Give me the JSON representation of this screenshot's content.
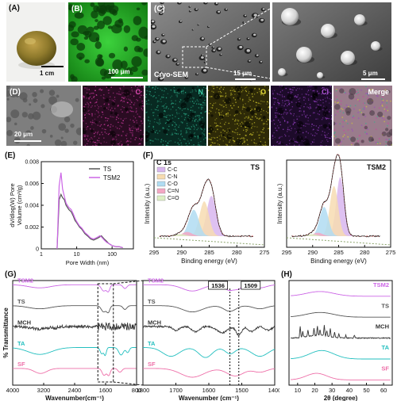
{
  "panels": {
    "A": {
      "label": "(A)",
      "scale": "1 cm"
    },
    "B": {
      "label": "(B)",
      "scale": "100 μm"
    },
    "C": {
      "label": "(C)",
      "caption": "Cryo-SEM",
      "scale_left": "15 μm",
      "scale_right": "5 μm"
    },
    "D": {
      "label": "(D)",
      "scale": "20 μm",
      "channels": [
        {
          "name": "C",
          "color": "#d23ca4"
        },
        {
          "name": "N",
          "color": "#2fb48e"
        },
        {
          "name": "O",
          "color": "#d8cf2e"
        },
        {
          "name": "Cl",
          "color": "#9a42c8"
        },
        {
          "name": "Merge",
          "color": "#ffffff"
        }
      ]
    },
    "E": {
      "label": "(E)"
    },
    "F": {
      "label": "(F)"
    },
    "G": {
      "label": "(G)"
    },
    "H": {
      "label": "(H)"
    }
  },
  "colors": {
    "TS": "#555555",
    "TSM2": "#cc66e6",
    "MCH": "#333333",
    "TA": "#22bfbf",
    "SF": "#ee6fa8"
  },
  "chart_data": [
    {
      "id": "E",
      "type": "line",
      "ylabel": "dV/dlog(W) Pore Volume (cm³/g)",
      "ylabel_lines": [
        "dV/dlog(W) Pore",
        "Volume (cm³/g)"
      ],
      "xlabel": "Pore Width (nm)",
      "xscale": "log",
      "xlim": [
        1,
        400
      ],
      "ylim": [
        0,
        0.008
      ],
      "xticks": [
        1,
        10,
        100
      ],
      "xtick_labels": [
        "1",
        "10",
        "100"
      ],
      "yticks": [
        0,
        0.002,
        0.004,
        0.006,
        0.008
      ],
      "ytick_labels": [
        "0",
        "0.002",
        "0.004",
        "0.006",
        "0.008"
      ],
      "legend": "top-right",
      "series": [
        {
          "name": "TS",
          "x": [
            2.8,
            3.2,
            3.6,
            4.0,
            4.5,
            5.0,
            6,
            7,
            8,
            9,
            10,
            12,
            14,
            17,
            20,
            25,
            30,
            35,
            40,
            45,
            50,
            60,
            70,
            80,
            100,
            130,
            160,
            200
          ],
          "y": [
            0,
            0.0045,
            0.005,
            0.0047,
            0.0045,
            0.004,
            0.0036,
            0.0034,
            0.003,
            0.0026,
            0.0024,
            0.002,
            0.0018,
            0.0014,
            0.0012,
            0.0009,
            0.0008,
            0.0009,
            0.001,
            0.0011,
            0.0012,
            0.0009,
            0.0007,
            0.0005,
            0.0003,
            0.0002,
            0.0002,
            0.0001
          ]
        },
        {
          "name": "TSM2",
          "x": [
            2.8,
            3.2,
            3.6,
            4.0,
            4.5,
            5.0,
            6,
            7,
            8,
            9,
            10,
            12,
            14,
            17,
            20,
            25,
            30,
            35,
            40,
            45,
            50,
            60,
            70,
            80,
            100,
            130,
            160,
            200
          ],
          "y": [
            0,
            0.0058,
            0.007,
            0.0055,
            0.0048,
            0.0042,
            0.0038,
            0.0036,
            0.0032,
            0.0028,
            0.0025,
            0.0021,
            0.0019,
            0.0015,
            0.0013,
            0.001,
            0.0009,
            0.001,
            0.0011,
            0.0012,
            0.0011,
            0.0008,
            0.0006,
            0.0005,
            0.0003,
            0.0002,
            0.0002,
            0.0001
          ]
        }
      ]
    },
    {
      "id": "F-TS",
      "type": "line",
      "title": "TS",
      "subtitle": "C 1s",
      "xlabel": "Binding energy (eV)",
      "ylabel": "Intensity (a.u.)",
      "xlim": [
        295,
        275
      ],
      "xticks": [
        295,
        290,
        285,
        280,
        275
      ],
      "legend": "top-left",
      "components": [
        {
          "name": "C-C",
          "color": "#d8b6ee",
          "center": 284.6,
          "height": 0.58,
          "sigma": 0.85
        },
        {
          "name": "C-N",
          "color": "#f7dcb1",
          "center": 285.9,
          "height": 0.5,
          "sigma": 0.85
        },
        {
          "name": "C-O",
          "color": "#b0dcf2",
          "center": 287.8,
          "height": 0.38,
          "sigma": 0.9
        },
        {
          "name": "C=N",
          "color": "#f3a7c3",
          "center": 289.0,
          "height": 0.06,
          "sigma": 0.9
        },
        {
          "name": "C=O",
          "color": "#dcefc3",
          "center": 290.2,
          "height": 0.03,
          "sigma": 0.9
        }
      ]
    },
    {
      "id": "F-TSM2",
      "type": "line",
      "title": "TSM2",
      "xlabel": "Binding energy (eV)",
      "ylabel": "Intensity (a.u.)",
      "xlim": [
        295,
        275
      ],
      "xticks": [
        295,
        290,
        285,
        280,
        275
      ],
      "components": [
        {
          "name": "C-C",
          "color": "#d8b6ee",
          "center": 284.7,
          "height": 0.85,
          "sigma": 0.75
        },
        {
          "name": "C-N",
          "color": "#f7dcb1",
          "center": 285.9,
          "height": 0.72,
          "sigma": 0.8
        },
        {
          "name": "C-O",
          "color": "#b0dcf2",
          "center": 287.8,
          "height": 0.42,
          "sigma": 0.85
        },
        {
          "name": "C=N",
          "color": "#f3a7c3",
          "center": 289.0,
          "height": 0.05,
          "sigma": 0.9
        },
        {
          "name": "C=O",
          "color": "#dcefc3",
          "center": 290.2,
          "height": 0.03,
          "sigma": 0.9
        }
      ]
    },
    {
      "id": "G-full",
      "type": "line",
      "xlabel": "Wavenumber(cm⁻¹)",
      "ylabel": "% Transmittance",
      "xlim": [
        4000,
        800
      ],
      "xticks": [
        4000,
        3200,
        2400,
        1600,
        800
      ],
      "series": [
        {
          "name": "TSM2",
          "offset": 4,
          "dips": [
            [
              3300,
              0.25,
              280
            ],
            [
              1650,
              0.5,
              60
            ],
            [
              1530,
              0.5,
              40
            ],
            [
              1100,
              0.3,
              50
            ]
          ],
          "noise": 0
        },
        {
          "name": "TS",
          "offset": 3,
          "dips": [
            [
              3300,
              0.25,
              280
            ],
            [
              1650,
              0.5,
              60
            ],
            [
              1530,
              0.5,
              40
            ],
            [
              1100,
              0.3,
              50
            ]
          ],
          "noise": 0
        },
        {
          "name": "MCH",
          "offset": 2,
          "dips": [
            [
              3300,
              0.2,
              200
            ],
            [
              2900,
              0.15,
              40
            ]
          ],
          "noise": 0.22
        },
        {
          "name": "TA",
          "offset": 1,
          "dips": [
            [
              3300,
              0.55,
              300
            ],
            [
              1700,
              0.5,
              40
            ],
            [
              1610,
              0.6,
              30
            ],
            [
              1200,
              0.6,
              60
            ],
            [
              1030,
              0.4,
              40
            ]
          ],
          "noise": 0
        },
        {
          "name": "SF",
          "offset": 0,
          "dips": [
            [
              3280,
              0.4,
              160
            ],
            [
              1640,
              0.55,
              50
            ],
            [
              1520,
              0.55,
              40
            ],
            [
              1230,
              0.3,
              50
            ]
          ],
          "noise": 0
        }
      ]
    },
    {
      "id": "G-zoom",
      "type": "line",
      "xlabel": "Wavenumber (cm⁻¹)",
      "xlim": [
        1800,
        1400
      ],
      "xticks": [
        1800,
        1700,
        1600,
        1500,
        1400
      ],
      "markers": [
        1536,
        1509
      ],
      "series": [
        {
          "name": "TSM2",
          "offset": 4,
          "dips": [
            [
              1650,
              0.5,
              30
            ],
            [
              1536,
              0.45,
              18
            ],
            [
              1509,
              0.2,
              10
            ],
            [
              1445,
              0.25,
              20
            ]
          ],
          "noise": 0
        },
        {
          "name": "TS",
          "offset": 3,
          "dips": [
            [
              1650,
              0.5,
              30
            ],
            [
              1536,
              0.45,
              18
            ],
            [
              1445,
              0.25,
              20
            ]
          ],
          "noise": 0
        },
        {
          "name": "MCH",
          "offset": 2,
          "dips": [
            [
              1700,
              0.3,
              10
            ],
            [
              1640,
              0.4,
              12
            ],
            [
              1560,
              0.5,
              15
            ],
            [
              1509,
              0.7,
              8
            ],
            [
              1470,
              0.4,
              10
            ],
            [
              1420,
              0.3,
              10
            ]
          ],
          "noise": 0.05
        },
        {
          "name": "TA",
          "offset": 1,
          "dips": [
            [
              1715,
              0.7,
              25
            ],
            [
              1610,
              0.8,
              20
            ],
            [
              1535,
              0.5,
              15
            ],
            [
              1445,
              0.7,
              25
            ]
          ],
          "noise": 0
        },
        {
          "name": "SF",
          "offset": 0,
          "dips": [
            [
              1650,
              0.7,
              35
            ],
            [
              1520,
              0.6,
              25
            ],
            [
              1445,
              0.3,
              20
            ]
          ],
          "noise": 0
        }
      ]
    },
    {
      "id": "H",
      "type": "line",
      "xlabel": "2θ (degree)",
      "ylabel": "",
      "xlim": [
        5,
        65
      ],
      "xticks": [
        10,
        20,
        30,
        40,
        50,
        60
      ],
      "series": [
        {
          "name": "TSM2",
          "offset": 4,
          "humps": [
            [
              23,
              0.25,
              8
            ]
          ],
          "sharp": []
        },
        {
          "name": "TS",
          "offset": 3,
          "humps": [
            [
              23,
              0.25,
              8
            ]
          ],
          "sharp": []
        },
        {
          "name": "MCH",
          "offset": 2,
          "humps": [
            [
              22,
              0.15,
              6
            ]
          ],
          "sharp": [
            [
              11.5,
              0.6
            ],
            [
              13,
              0.3
            ],
            [
              16,
              0.35
            ],
            [
              19.5,
              0.4
            ],
            [
              21.5,
              0.5
            ],
            [
              23,
              0.3
            ],
            [
              25.5,
              0.55
            ],
            [
              27,
              0.3
            ],
            [
              29,
              0.45
            ],
            [
              31.5,
              0.25
            ],
            [
              34,
              0.2
            ],
            [
              38,
              0.15
            ],
            [
              43,
              0.15
            ]
          ]
        },
        {
          "name": "TA",
          "offset": 1,
          "humps": [
            [
              24,
              0.45,
              7
            ]
          ],
          "sharp": []
        },
        {
          "name": "SF",
          "offset": 0,
          "humps": [
            [
              21,
              0.35,
              6
            ]
          ],
          "sharp": []
        }
      ]
    }
  ]
}
